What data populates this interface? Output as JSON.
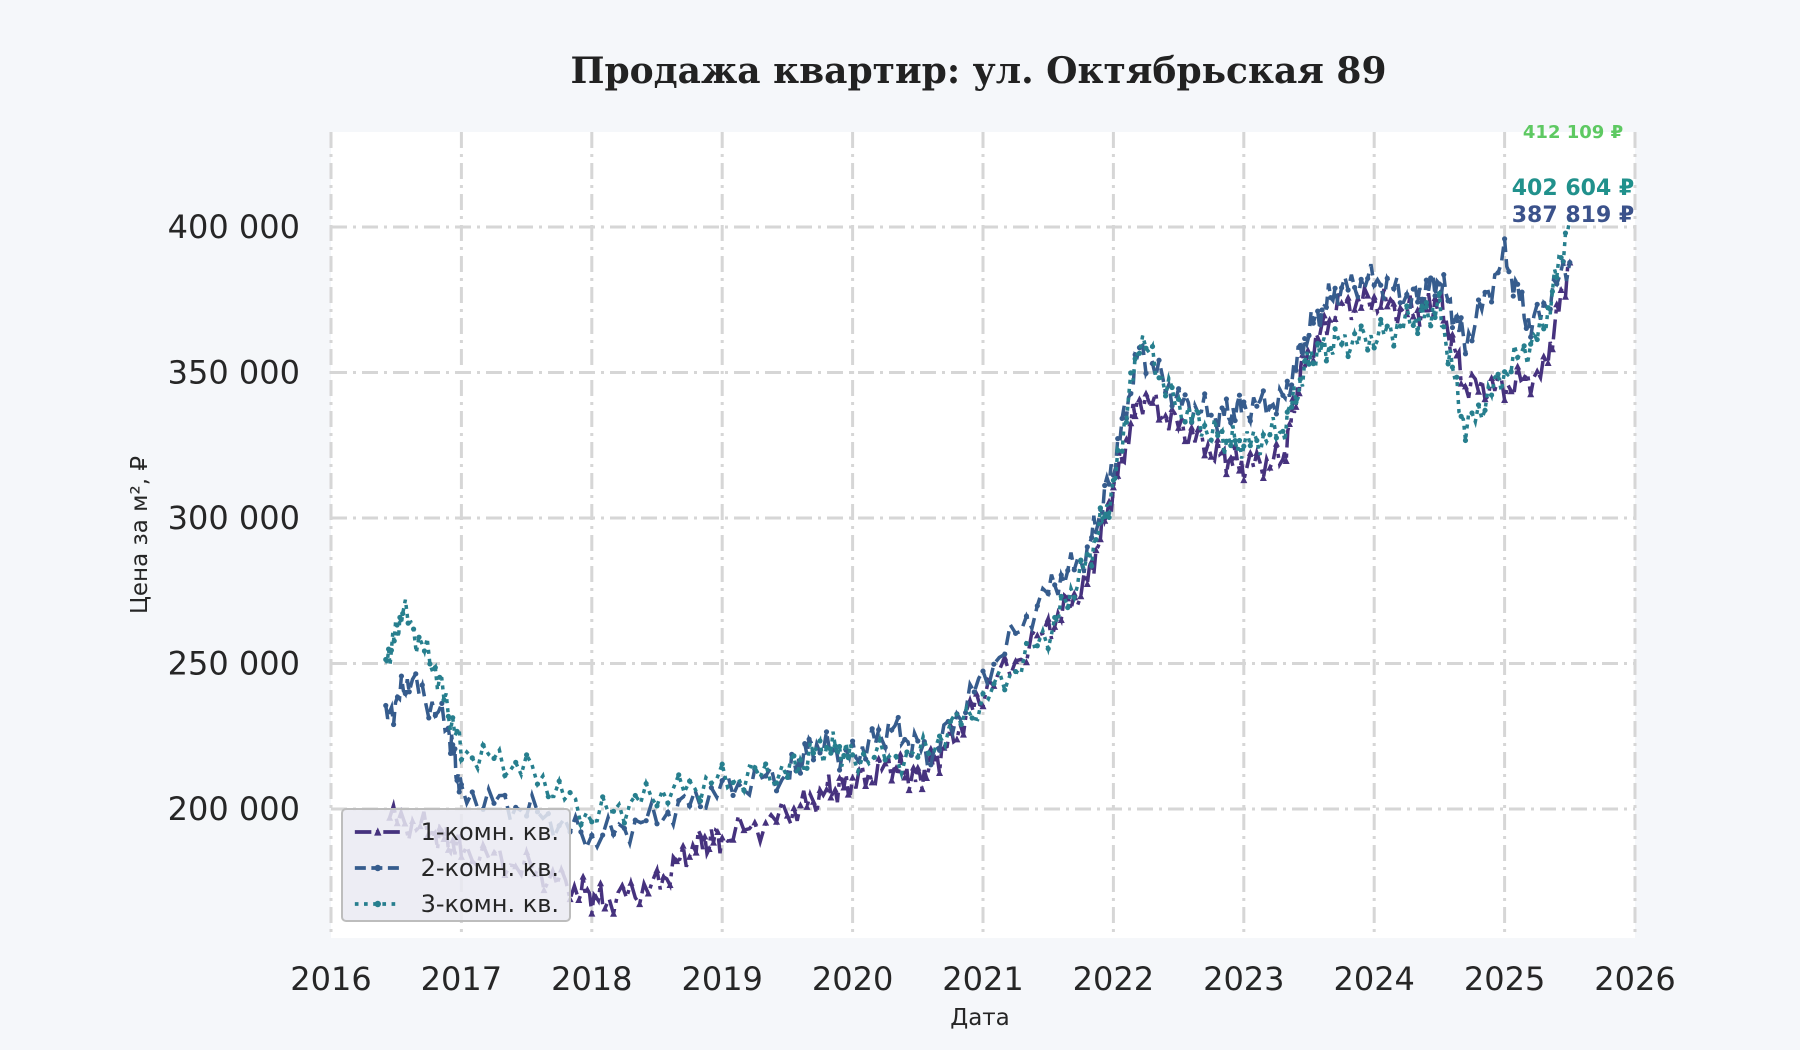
{
  "chart_data": {
    "type": "line",
    "title": "Продажа квартир: ул. Октябрьская 89",
    "xlabel": "Дата",
    "ylabel": "Цена за м², ₽",
    "xlim": [
      2016,
      2026
    ],
    "ylim": [
      155000,
      430000
    ],
    "x_ticks": [
      "2016",
      "2017",
      "2018",
      "2019",
      "2020",
      "2021",
      "2022",
      "2023",
      "2024",
      "2025",
      "2026"
    ],
    "y_ticks": [
      "200 000",
      "250 000",
      "300 000",
      "350 000",
      "400 000"
    ],
    "y_tick_values": [
      200000,
      250000,
      300000,
      350000,
      400000
    ],
    "grid": true,
    "legend_position": "lower left",
    "series": [
      {
        "name": "1-комн. кв.",
        "color": "#46327e",
        "style": "dashdot",
        "marker": "triangle",
        "x": [
          2016.45,
          2016.8,
          2017.0,
          2017.5,
          2017.9,
          2018.1,
          2018.5,
          2018.8,
          2019.0,
          2019.5,
          2019.8,
          2020.0,
          2020.3,
          2020.5,
          2020.7,
          2021.0,
          2021.5,
          2021.8,
          2022.0,
          2022.2,
          2022.5,
          2022.8,
          2023.0,
          2023.3,
          2023.45,
          2023.7,
          2024.0,
          2024.3,
          2024.5,
          2024.7,
          2025.0,
          2025.3,
          2025.5
        ],
        "values": [
          197000,
          192000,
          186000,
          180000,
          172000,
          168000,
          174000,
          188000,
          190000,
          198000,
          206000,
          209000,
          215000,
          210000,
          220000,
          240000,
          262000,
          278000,
          310000,
          342000,
          332000,
          322000,
          318000,
          320000,
          352000,
          372000,
          375000,
          370000,
          375000,
          345000,
          345000,
          350000,
          387819
        ]
      },
      {
        "name": "2-комн. кв.",
        "color": "#365c8d",
        "style": "dashed",
        "marker": "circle",
        "x": [
          2016.42,
          2016.6,
          2016.9,
          2017.0,
          2017.5,
          2018.0,
          2018.5,
          2019.0,
          2019.5,
          2019.7,
          2020.0,
          2020.3,
          2020.6,
          2021.0,
          2021.5,
          2021.8,
          2022.0,
          2022.2,
          2022.5,
          2022.8,
          2023.0,
          2023.3,
          2023.5,
          2023.7,
          2024.0,
          2024.3,
          2024.5,
          2024.7,
          2025.0,
          2025.2,
          2025.5
        ],
        "values": [
          230000,
          245000,
          228000,
          205000,
          200000,
          190000,
          197000,
          207000,
          212000,
          222000,
          218000,
          228000,
          218000,
          245000,
          275000,
          288000,
          318000,
          358000,
          340000,
          335000,
          338000,
          340000,
          365000,
          378000,
          382000,
          375000,
          382000,
          360000,
          390000,
          365000,
          387819
        ]
      },
      {
        "name": "3-комн. кв.",
        "color": "#277f8e",
        "style": "dotted",
        "marker": "circle",
        "x": [
          2016.42,
          2016.55,
          2016.8,
          2017.0,
          2017.5,
          2018.0,
          2018.5,
          2019.0,
          2019.5,
          2019.8,
          2020.0,
          2020.5,
          2021.0,
          2021.5,
          2021.8,
          2022.0,
          2022.2,
          2022.5,
          2022.8,
          2023.0,
          2023.3,
          2023.5,
          2023.7,
          2024.0,
          2024.3,
          2024.5,
          2024.7,
          2025.0,
          2025.3,
          2025.5
        ],
        "values": [
          250000,
          268000,
          248000,
          220000,
          214000,
          197000,
          205000,
          210000,
          213000,
          222000,
          218000,
          218000,
          237000,
          260000,
          285000,
          310000,
          362000,
          338000,
          328000,
          325000,
          330000,
          355000,
          360000,
          362000,
          368000,
          372000,
          330000,
          350000,
          365000,
          402604
        ]
      }
    ],
    "annotations": [
      {
        "text": "412 109 ₽",
        "color": "#5ec962",
        "x": 2025.5,
        "y": 412109
      },
      {
        "text": "402 604 ₽",
        "color": "#21918c",
        "x": 2025.5,
        "y": 402604
      },
      {
        "text": "387 819 ₽",
        "color": "#3b528b",
        "x": 2025.5,
        "y": 387819
      }
    ]
  }
}
